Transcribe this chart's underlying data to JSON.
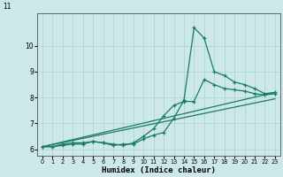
{
  "xlabel": "Humidex (Indice chaleur)",
  "bg_color": "#cce8e8",
  "grid_color": "#b0d4d4",
  "line_color": "#1a7a6a",
  "x_values": [
    0,
    1,
    2,
    3,
    4,
    5,
    6,
    7,
    8,
    9,
    10,
    11,
    12,
    13,
    14,
    15,
    16,
    17,
    18,
    19,
    20,
    21,
    22,
    23
  ],
  "line1": [
    6.1,
    6.1,
    6.2,
    6.25,
    6.25,
    6.3,
    6.25,
    6.15,
    6.2,
    6.2,
    6.4,
    6.55,
    6.65,
    7.2,
    7.9,
    10.7,
    10.3,
    9.0,
    8.85,
    8.6,
    8.5,
    8.35,
    8.15,
    8.2
  ],
  "line2": [
    6.1,
    6.1,
    6.15,
    6.2,
    6.2,
    6.3,
    6.25,
    6.2,
    6.15,
    6.25,
    6.5,
    6.8,
    7.3,
    7.7,
    7.85,
    7.85,
    8.7,
    8.5,
    8.35,
    8.3,
    8.25,
    8.15,
    8.1,
    8.15
  ],
  "trend1_x": [
    0,
    23
  ],
  "trend1_y": [
    6.1,
    8.2
  ],
  "trend2_x": [
    0,
    23
  ],
  "trend2_y": [
    6.1,
    7.95
  ],
  "ylim": [
    5.75,
    11.25
  ],
  "xlim": [
    -0.5,
    23.5
  ],
  "yticks": [
    6,
    7,
    8,
    9,
    10
  ],
  "ytop_label": "11",
  "xticks": [
    0,
    1,
    2,
    3,
    4,
    5,
    6,
    7,
    8,
    9,
    10,
    11,
    12,
    13,
    14,
    15,
    16,
    17,
    18,
    19,
    20,
    21,
    22,
    23
  ],
  "tick_fontsize": 5.5,
  "xlabel_fontsize": 6.5,
  "spine_color": "#666666"
}
